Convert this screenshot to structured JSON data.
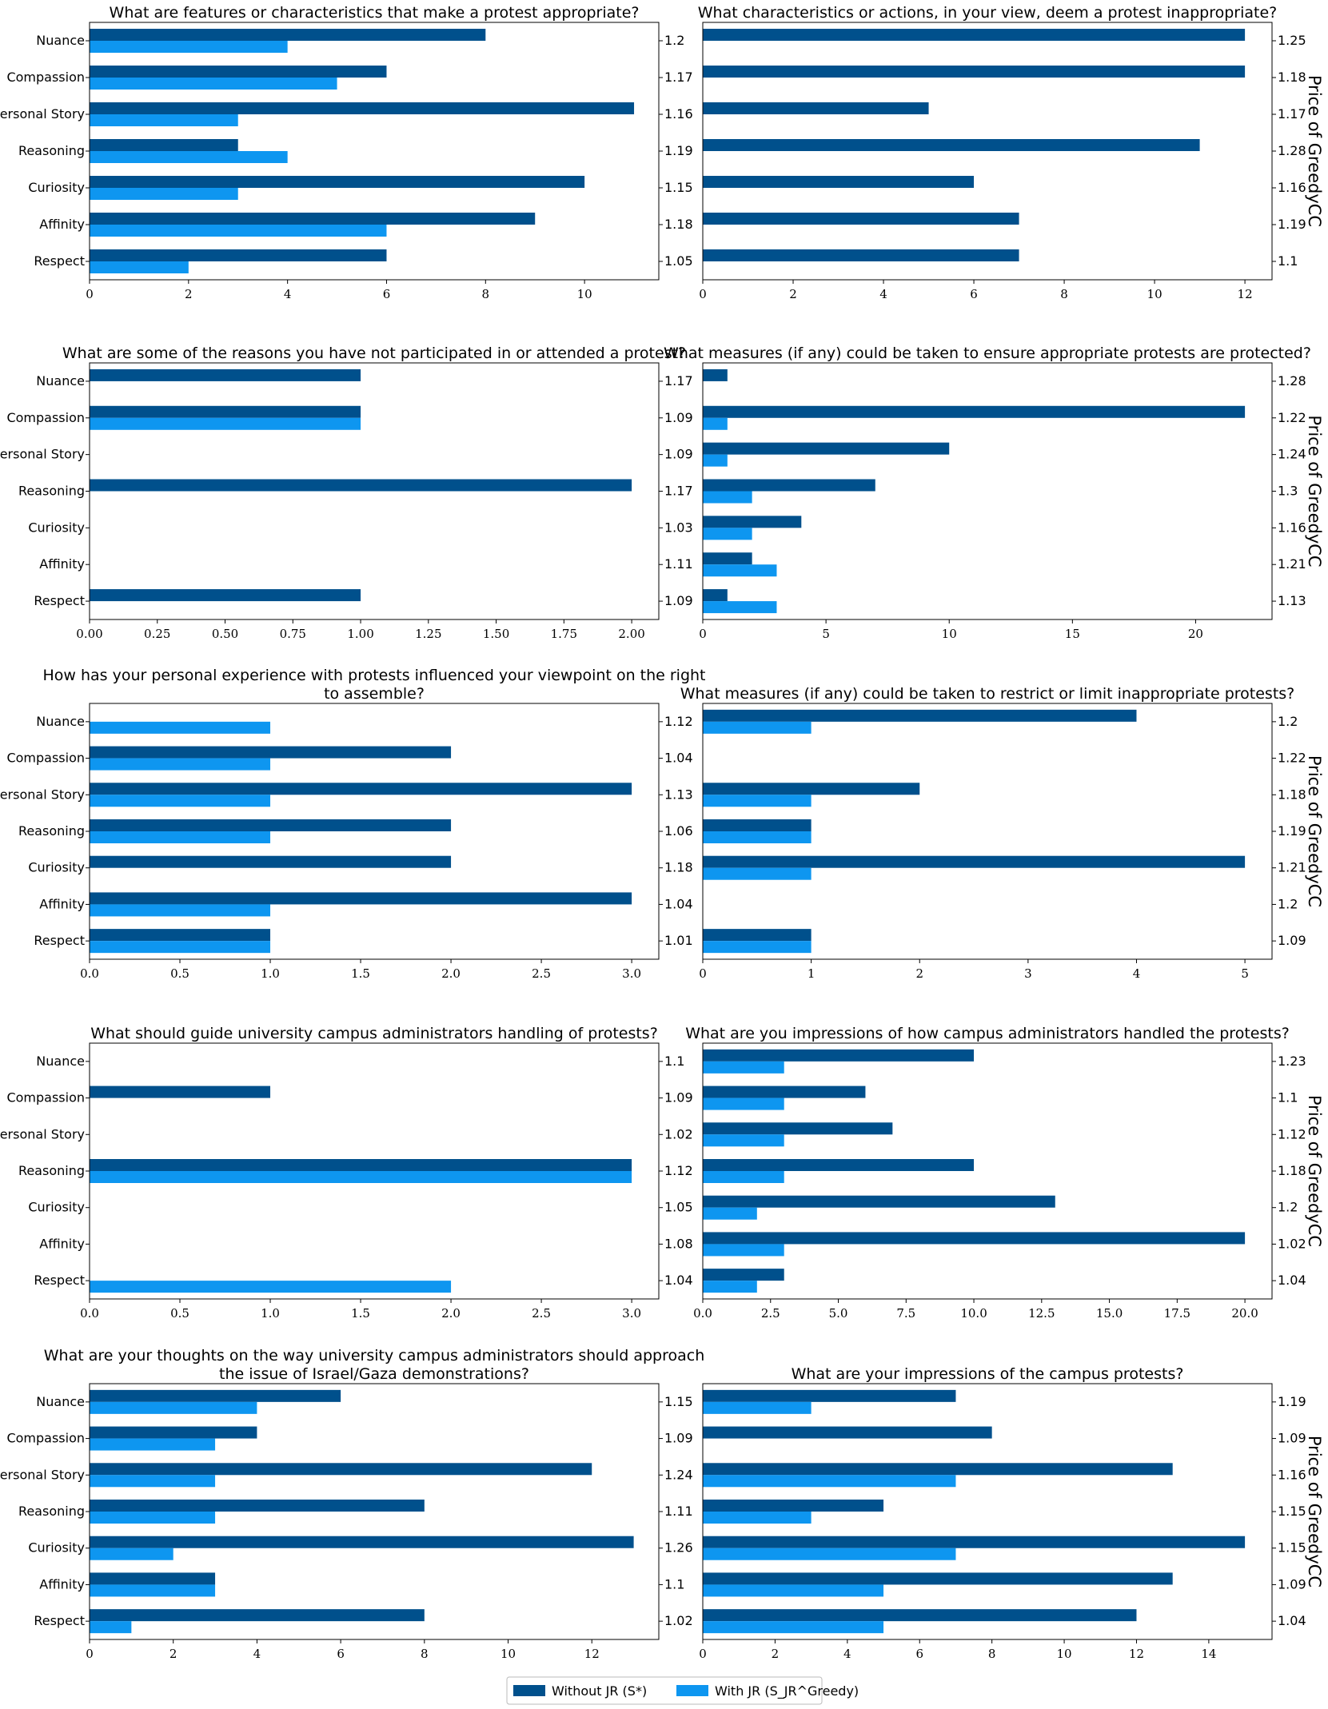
{
  "colors": {
    "without_jr": "#00508C",
    "with_jr": "#0E96F0"
  },
  "legend": {
    "without_label": "Without JR (S*)",
    "with_label": "With JR (S_JR^Greedy)"
  },
  "right_axis_label": "Price of GreedyCC",
  "chart_data": [
    {
      "type": "bar",
      "title": "What are features or characteristics that make a protest appropriate?",
      "categories": [
        "Nuance",
        "Compassion",
        "Personal Story",
        "Reasoning",
        "Curiosity",
        "Affinity",
        "Respect"
      ],
      "series": [
        {
          "name": "Without JR",
          "values": [
            8,
            6,
            11,
            3,
            10,
            9,
            6
          ]
        },
        {
          "name": "With JR",
          "values": [
            4,
            5,
            3,
            4,
            3,
            6,
            2
          ]
        }
      ],
      "price": [
        "1.2",
        "1.17",
        "1.16",
        "1.19",
        "1.15",
        "1.18",
        "1.05"
      ],
      "xlim": [
        0,
        11.5
      ],
      "xticks": [
        "0",
        "2",
        "4",
        "6",
        "8",
        "10"
      ],
      "xtick_values": [
        0,
        2,
        4,
        6,
        8,
        10
      ]
    },
    {
      "type": "bar",
      "title": "What characteristics or actions, in your view, deem a protest inappropriate?",
      "categories": [
        "Nuance",
        "Compassion",
        "Personal Story",
        "Reasoning",
        "Curiosity",
        "Affinity",
        "Respect"
      ],
      "series": [
        {
          "name": "Without JR",
          "values": [
            12,
            12,
            5,
            11,
            6,
            7,
            7
          ]
        },
        {
          "name": "With JR",
          "values": [
            0,
            0,
            0,
            0,
            0,
            0,
            0
          ]
        }
      ],
      "price": [
        "1.25",
        "1.18",
        "1.17",
        "1.28",
        "1.16",
        "1.19",
        "1.1"
      ],
      "xlim": [
        0,
        12.6
      ],
      "xticks": [
        "0",
        "2",
        "4",
        "6",
        "8",
        "10",
        "12"
      ],
      "xtick_values": [
        0,
        2,
        4,
        6,
        8,
        10,
        12
      ]
    },
    {
      "type": "bar",
      "title": "What are some of the reasons you have not participated in or attended a protest?",
      "categories": [
        "Nuance",
        "Compassion",
        "Personal Story",
        "Reasoning",
        "Curiosity",
        "Affinity",
        "Respect"
      ],
      "series": [
        {
          "name": "Without JR",
          "values": [
            1,
            1,
            0,
            2,
            0,
            0,
            1
          ]
        },
        {
          "name": "With JR",
          "values": [
            0,
            1,
            0,
            0,
            0,
            0,
            0
          ]
        }
      ],
      "price": [
        "1.17",
        "1.09",
        "1.09",
        "1.17",
        "1.03",
        "1.11",
        "1.09"
      ],
      "xlim": [
        0,
        2.1
      ],
      "xticks": [
        "0.00",
        "0.25",
        "0.50",
        "0.75",
        "1.00",
        "1.25",
        "1.50",
        "1.75",
        "2.00"
      ],
      "xtick_values": [
        0,
        0.25,
        0.5,
        0.75,
        1,
        1.25,
        1.5,
        1.75,
        2
      ]
    },
    {
      "type": "bar",
      "title": "What measures (if any) could be taken to ensure appropriate protests are protected?",
      "categories": [
        "Nuance",
        "Compassion",
        "Personal Story",
        "Reasoning",
        "Curiosity",
        "Affinity",
        "Respect"
      ],
      "series": [
        {
          "name": "Without JR",
          "values": [
            1,
            22,
            10,
            7,
            4,
            2,
            1
          ]
        },
        {
          "name": "With JR",
          "values": [
            0,
            1,
            1,
            2,
            2,
            3,
            3
          ]
        }
      ],
      "price": [
        "1.28",
        "1.22",
        "1.24",
        "1.3",
        "1.16",
        "1.21",
        "1.13"
      ],
      "xlim": [
        0,
        23.1
      ],
      "xticks": [
        "0",
        "5",
        "10",
        "15",
        "20"
      ],
      "xtick_values": [
        0,
        5,
        10,
        15,
        20
      ]
    },
    {
      "type": "bar",
      "title": "How has your personal experience with protests influenced your viewpoint on the right to assemble?",
      "title_lines": [
        "How has your personal experience with protests influenced your viewpoint on the right",
        "to assemble?"
      ],
      "categories": [
        "Nuance",
        "Compassion",
        "Personal Story",
        "Reasoning",
        "Curiosity",
        "Affinity",
        "Respect"
      ],
      "series": [
        {
          "name": "Without JR",
          "values": [
            0,
            2,
            3,
            2,
            2,
            3,
            1
          ]
        },
        {
          "name": "With JR",
          "values": [
            1,
            1,
            1,
            1,
            0,
            1,
            1
          ]
        }
      ],
      "price": [
        "1.12",
        "1.04",
        "1.13",
        "1.06",
        "1.18",
        "1.04",
        "1.01"
      ],
      "xlim": [
        0,
        3.15
      ],
      "xticks": [
        "0.0",
        "0.5",
        "1.0",
        "1.5",
        "2.0",
        "2.5",
        "3.0"
      ],
      "xtick_values": [
        0,
        0.5,
        1,
        1.5,
        2,
        2.5,
        3
      ]
    },
    {
      "type": "bar",
      "title": "What measures (if any) could be taken to restrict or limit inappropriate protests?",
      "categories": [
        "Nuance",
        "Compassion",
        "Personal Story",
        "Reasoning",
        "Curiosity",
        "Affinity",
        "Respect"
      ],
      "series": [
        {
          "name": "Without JR",
          "values": [
            4,
            0,
            2,
            1,
            5,
            0,
            1
          ]
        },
        {
          "name": "With JR",
          "values": [
            1,
            0,
            1,
            1,
            1,
            0,
            1
          ]
        }
      ],
      "price": [
        "1.2",
        "1.22",
        "1.18",
        "1.19",
        "1.21",
        "1.2",
        "1.09"
      ],
      "xlim": [
        0,
        5.25
      ],
      "xticks": [
        "0",
        "1",
        "2",
        "3",
        "4",
        "5"
      ],
      "xtick_values": [
        0,
        1,
        2,
        3,
        4,
        5
      ]
    },
    {
      "type": "bar",
      "title": "What should guide university campus administrators handling of protests?",
      "categories": [
        "Nuance",
        "Compassion",
        "Personal Story",
        "Reasoning",
        "Curiosity",
        "Affinity",
        "Respect"
      ],
      "series": [
        {
          "name": "Without JR",
          "values": [
            0,
            1,
            0,
            3,
            0,
            0,
            0
          ]
        },
        {
          "name": "With JR",
          "values": [
            0,
            0,
            0,
            3,
            0,
            0,
            2
          ]
        }
      ],
      "price": [
        "1.1",
        "1.09",
        "1.02",
        "1.12",
        "1.05",
        "1.08",
        "1.04"
      ],
      "xlim": [
        0,
        3.15
      ],
      "xticks": [
        "0.0",
        "0.5",
        "1.0",
        "1.5",
        "2.0",
        "2.5",
        "3.0"
      ],
      "xtick_values": [
        0,
        0.5,
        1,
        1.5,
        2,
        2.5,
        3
      ]
    },
    {
      "type": "bar",
      "title": "What are you impressions of how campus administrators handled the protests?",
      "categories": [
        "Nuance",
        "Compassion",
        "Personal Story",
        "Reasoning",
        "Curiosity",
        "Affinity",
        "Respect"
      ],
      "series": [
        {
          "name": "Without JR",
          "values": [
            10,
            6,
            7,
            10,
            13,
            20,
            3
          ]
        },
        {
          "name": "With JR",
          "values": [
            3,
            3,
            3,
            3,
            2,
            3,
            2
          ]
        }
      ],
      "price": [
        "1.23",
        "1.1",
        "1.12",
        "1.18",
        "1.2",
        "1.02",
        "1.04"
      ],
      "xlim": [
        0,
        21
      ],
      "xticks": [
        "0.0",
        "2.5",
        "5.0",
        "7.5",
        "10.0",
        "12.5",
        "15.0",
        "17.5",
        "20.0"
      ],
      "xtick_values": [
        0,
        2.5,
        5,
        7.5,
        10,
        12.5,
        15,
        17.5,
        20
      ]
    },
    {
      "type": "bar",
      "title": "What are your thoughts on the way university campus administrators should approach the issue of Israel/Gaza demonstrations?",
      "title_lines": [
        "What are your thoughts on the way university campus administrators should approach",
        "the issue of Israel/Gaza demonstrations?"
      ],
      "categories": [
        "Nuance",
        "Compassion",
        "Personal Story",
        "Reasoning",
        "Curiosity",
        "Affinity",
        "Respect"
      ],
      "series": [
        {
          "name": "Without JR",
          "values": [
            6,
            4,
            12,
            8,
            13,
            3,
            8
          ]
        },
        {
          "name": "With JR",
          "values": [
            4,
            3,
            3,
            3,
            2,
            3,
            1
          ]
        }
      ],
      "price": [
        "1.15",
        "1.09",
        "1.24",
        "1.11",
        "1.26",
        "1.1",
        "1.02"
      ],
      "xlim": [
        0,
        13.6
      ],
      "xticks": [
        "0",
        "2",
        "4",
        "6",
        "8",
        "10",
        "12"
      ],
      "xtick_values": [
        0,
        2,
        4,
        6,
        8,
        10,
        12
      ]
    },
    {
      "type": "bar",
      "title": "What are your impressions of the campus protests?",
      "categories": [
        "Nuance",
        "Compassion",
        "Personal Story",
        "Reasoning",
        "Curiosity",
        "Affinity",
        "Respect"
      ],
      "series": [
        {
          "name": "Without JR",
          "values": [
            7,
            8,
            13,
            5,
            15,
            13,
            12
          ]
        },
        {
          "name": "With JR",
          "values": [
            3,
            0,
            7,
            3,
            7,
            5,
            5
          ]
        }
      ],
      "price": [
        "1.19",
        "1.09",
        "1.16",
        "1.15",
        "1.15",
        "1.09",
        "1.04"
      ],
      "xlim": [
        0,
        15.75
      ],
      "xticks": [
        "0",
        "2",
        "4",
        "6",
        "8",
        "10",
        "12",
        "14"
      ],
      "xtick_values": [
        0,
        2,
        4,
        6,
        8,
        10,
        12,
        14
      ]
    }
  ]
}
